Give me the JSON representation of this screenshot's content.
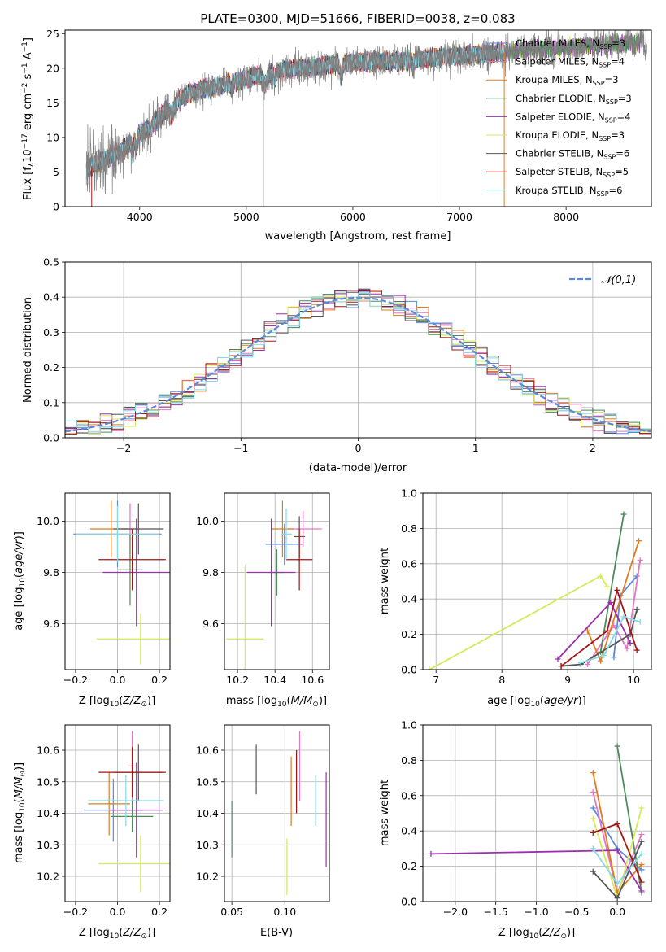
{
  "colors": {
    "Chabrier MILES": "#5b8bd8",
    "Salpeter MILES": "#e377c2",
    "Kroupa MILES": "#e07b1e",
    "Chabrier ELODIE": "#4e8a5e",
    "Salpeter ELODIE": "#9b2fae",
    "Kroupa ELODIE": "#d4ea5a",
    "Chabrier STELIB": "#555555",
    "Salpeter STELIB": "#a31515",
    "Kroupa STELIB": "#86d9e6",
    "gauss": "#5b8bd8",
    "observed": "#808080"
  },
  "chart_data": [
    {
      "id": "spectrum",
      "type": "line",
      "title": "PLATE=0300, MJD=51666, FIBERID=0038, z=0.083",
      "xlabel": "wavelength [Angstrom, rest frame]",
      "ylabel": "Flux [f_λ10^-17 erg cm^-2 s^-1 A^-1]",
      "xlim": [
        3300,
        8800
      ],
      "ylim": [
        0,
        25.5
      ],
      "xticks": [
        4000,
        5000,
        6000,
        7000,
        8000
      ],
      "yticks": [
        0,
        5,
        10,
        15,
        20,
        25
      ],
      "legend_position": "upper right",
      "legend": [
        {
          "name": "Chabrier MILES",
          "nssp": "3"
        },
        {
          "name": "Salpeter MILES",
          "nssp": "4"
        },
        {
          "name": "Kroupa MILES",
          "nssp": "3"
        },
        {
          "name": "Chabrier ELODIE",
          "nssp": "3"
        },
        {
          "name": "Salpeter ELODIE",
          "nssp": "4"
        },
        {
          "name": "Kroupa ELODIE",
          "nssp": "3"
        },
        {
          "name": "Chabrier STELIB",
          "nssp": "6"
        },
        {
          "name": "Salpeter STELIB",
          "nssp": "5"
        },
        {
          "name": "Kroupa STELIB",
          "nssp": "6"
        }
      ],
      "continuum": {
        "x": [
          3500,
          3600,
          3700,
          3800,
          3900,
          4000,
          4100,
          4200,
          4300,
          4400,
          4500,
          4600,
          4700,
          4800,
          4900,
          5000,
          5200,
          5400,
          5600,
          5800,
          6000,
          6200,
          6400,
          6600,
          6800,
          7000,
          7200,
          7400,
          7600,
          7800,
          8000,
          8200,
          8400,
          8600,
          8800
        ],
        "y": [
          5.5,
          6.2,
          7.0,
          7.8,
          9.0,
          10.5,
          11.7,
          13.2,
          14.8,
          15.8,
          16.6,
          17.0,
          17.3,
          17.6,
          18.0,
          18.6,
          19.3,
          19.8,
          20.1,
          20.5,
          20.8,
          21.0,
          21.0,
          21.2,
          21.6,
          21.8,
          22.0,
          22.3,
          22.6,
          22.8,
          23.0,
          23.2,
          23.4,
          23.6,
          23.8
        ]
      },
      "features": {
        "notes": "absorption dips at ~3930, 4300, 5175, 5890; data spikes to 0 at 5160, 6790, 7420"
      }
    },
    {
      "id": "residuals",
      "type": "step",
      "xlabel": "(data-model)/error",
      "ylabel": "Normed distribution",
      "xlim": [
        -2.5,
        2.5
      ],
      "ylim": [
        0,
        0.5
      ],
      "xticks": [
        -2,
        -1,
        0,
        1,
        2
      ],
      "yticks": [
        0.0,
        0.1,
        0.2,
        0.3,
        0.4,
        0.5
      ],
      "bin_width": 0.1,
      "legend_label": "𝒩(0,1)",
      "legend_position": "upper right"
    },
    {
      "id": "age_vs_Z",
      "type": "errorbar",
      "xlabel": "Z [log10(Z/Z⊙)]",
      "ylabel": "age [log10(age/yr)]",
      "xlim": [
        -0.25,
        0.25
      ],
      "ylim": [
        9.42,
        10.11
      ],
      "xticks": [
        -0.2,
        0.0,
        0.2
      ],
      "yticks": [
        9.6,
        9.8,
        10.0
      ],
      "points": [
        {
          "model": "Chabrier MILES",
          "x": 0.0,
          "y": 9.95,
          "xerr": 0.21,
          "yerr": 0.13
        },
        {
          "model": "Salpeter MILES",
          "x": 0.06,
          "y": 9.97,
          "xerr": 0.04,
          "yerr": 0.1
        },
        {
          "model": "Kroupa MILES",
          "x": -0.03,
          "y": 9.97,
          "xerr": 0.1,
          "yerr": 0.11
        },
        {
          "model": "Chabrier ELODIE",
          "x": 0.06,
          "y": 9.81,
          "xerr": 0.06,
          "yerr": 0.14
        },
        {
          "model": "Salpeter ELODIE",
          "x": 0.09,
          "y": 9.8,
          "xerr": 0.16,
          "yerr": 0.21
        },
        {
          "model": "Kroupa ELODIE",
          "x": 0.11,
          "y": 9.54,
          "xerr": 0.21,
          "yerr": 0.1
        },
        {
          "model": "Chabrier STELIB",
          "x": 0.1,
          "y": 9.97,
          "xerr": 0.12,
          "yerr": 0.1
        },
        {
          "model": "Salpeter STELIB",
          "x": 0.07,
          "y": 9.85,
          "xerr": 0.16,
          "yerr": 0.12
        },
        {
          "model": "Kroupa STELIB",
          "x": 0.0,
          "y": 9.95,
          "xerr": 0.2,
          "yerr": 0.11
        }
      ]
    },
    {
      "id": "age_vs_mass",
      "type": "errorbar",
      "xlabel": "mass [log10(M/M⊙)]",
      "ylabel": "",
      "xlim": [
        10.13,
        10.69
      ],
      "ylim": [
        9.42,
        10.11
      ],
      "xticks": [
        10.2,
        10.4,
        10.6
      ],
      "yticks": [
        9.6,
        9.8,
        10.0
      ],
      "points": [
        {
          "model": "Chabrier MILES",
          "x": 10.45,
          "y": 9.91,
          "xerr": 0.1,
          "yerr": 0.08
        },
        {
          "model": "Salpeter MILES",
          "x": 10.55,
          "y": 9.97,
          "xerr": 0.1,
          "yerr": 0.07
        },
        {
          "model": "Kroupa MILES",
          "x": 10.44,
          "y": 9.97,
          "xerr": 0.06,
          "yerr": 0.11
        },
        {
          "model": "Chabrier ELODIE",
          "x": 10.41,
          "y": 9.8,
          "xerr": 0.04,
          "yerr": 0.09
        },
        {
          "model": "Salpeter ELODIE",
          "x": 10.38,
          "y": 9.8,
          "xerr": 0.13,
          "yerr": 0.21
        },
        {
          "model": "Kroupa ELODIE",
          "x": 10.24,
          "y": 9.54,
          "xerr": 0.1,
          "yerr": 0.29
        },
        {
          "model": "Chabrier STELIB",
          "x": 10.53,
          "y": 9.94,
          "xerr": 0.03,
          "yerr": 0.08
        },
        {
          "model": "Salpeter STELIB",
          "x": 10.53,
          "y": 9.85,
          "xerr": 0.07,
          "yerr": 0.12
        },
        {
          "model": "Kroupa STELIB",
          "x": 10.46,
          "y": 9.95,
          "xerr": 0.03,
          "yerr": 0.1
        }
      ]
    },
    {
      "id": "weight_vs_age",
      "type": "line",
      "xlabel": "age [log10(age/yr)]",
      "ylabel": "mass weight",
      "xlim": [
        6.8,
        10.27
      ],
      "ylim": [
        0,
        1.0
      ],
      "xticks": [
        7,
        8,
        9,
        10
      ],
      "yticks": [
        0.0,
        0.2,
        0.4,
        0.6,
        0.8,
        1.0
      ],
      "series": [
        {
          "model": "Chabrier MILES",
          "x": [
            9.7,
            9.8,
            10.05
          ],
          "y": [
            0.07,
            0.42,
            0.53
          ]
        },
        {
          "model": "Salpeter MILES",
          "x": [
            9.3,
            9.7,
            9.9,
            10.1
          ],
          "y": [
            0.03,
            0.25,
            0.12,
            0.62
          ]
        },
        {
          "model": "Kroupa MILES",
          "x": [
            9.3,
            9.5,
            10.08
          ],
          "y": [
            0.22,
            0.05,
            0.73
          ]
        },
        {
          "model": "Chabrier ELODIE",
          "x": [
            9.5,
            9.85
          ],
          "y": [
            0.1,
            0.88
          ]
        },
        {
          "model": "Salpeter ELODIE",
          "x": [
            8.85,
            9.65,
            9.95
          ],
          "y": [
            0.06,
            0.38,
            0.15
          ]
        },
        {
          "model": "Kroupa ELODIE",
          "x": [
            6.9,
            9.5,
            9.6
          ],
          "y": [
            0.0,
            0.53,
            0.47
          ]
        },
        {
          "model": "Chabrier STELIB",
          "x": [
            8.9,
            9.2,
            9.95,
            10.05
          ],
          "y": [
            0.02,
            0.03,
            0.2,
            0.34
          ]
        },
        {
          "model": "Salpeter STELIB",
          "x": [
            8.9,
            9.6,
            9.75,
            10.05
          ],
          "y": [
            0.02,
            0.22,
            0.45,
            0.11
          ]
        },
        {
          "model": "Kroupa STELIB",
          "x": [
            9.2,
            9.55,
            9.85,
            10.1
          ],
          "y": [
            0.04,
            0.08,
            0.3,
            0.27
          ]
        }
      ]
    },
    {
      "id": "mass_vs_Z",
      "type": "errorbar",
      "xlabel": "Z [log10(Z/Z⊙)]",
      "ylabel": "mass [log10(M/M⊙)]",
      "xlim": [
        -0.25,
        0.25
      ],
      "ylim": [
        10.12,
        10.68
      ],
      "xticks": [
        -0.2,
        0.0,
        0.2
      ],
      "yticks": [
        10.2,
        10.3,
        10.4,
        10.5,
        10.6
      ],
      "points": [
        {
          "model": "Chabrier MILES",
          "x": -0.02,
          "y": 10.41,
          "xerr": 0.14,
          "yerr": 0.1
        },
        {
          "model": "Salpeter MILES",
          "x": 0.07,
          "y": 10.55,
          "xerr": 0.02,
          "yerr": 0.11
        },
        {
          "model": "Kroupa MILES",
          "x": -0.04,
          "y": 10.43,
          "xerr": 0.1,
          "yerr": 0.1
        },
        {
          "model": "Chabrier ELODIE",
          "x": 0.07,
          "y": 10.39,
          "xerr": 0.1,
          "yerr": 0.05
        },
        {
          "model": "Salpeter ELODIE",
          "x": 0.09,
          "y": 10.41,
          "xerr": 0.13,
          "yerr": 0.15
        },
        {
          "model": "Kroupa ELODIE",
          "x": 0.11,
          "y": 10.24,
          "xerr": 0.2,
          "yerr": 0.09
        },
        {
          "model": "Chabrier STELIB",
          "x": 0.1,
          "y": 10.53,
          "xerr": 0.12,
          "yerr": 0.09
        },
        {
          "model": "Salpeter STELIB",
          "x": 0.07,
          "y": 10.53,
          "xerr": 0.16,
          "yerr": 0.08
        },
        {
          "model": "Kroupa STELIB",
          "x": 0.04,
          "y": 10.44,
          "xerr": 0.18,
          "yerr": 0.08
        }
      ]
    },
    {
      "id": "mass_vs_ebv",
      "type": "errorbar",
      "xlabel": "E(B-V)",
      "ylabel": "",
      "xlim": [
        0.043,
        0.142
      ],
      "ylim": [
        10.12,
        10.68
      ],
      "xticks": [
        0.05,
        0.1
      ],
      "yticks": [
        10.2,
        10.3,
        10.4,
        10.5,
        10.6
      ],
      "points": [
        {
          "model": "Chabrier ELODIE",
          "x": 0.05,
          "y": 10.35,
          "xerr": 0,
          "yerr": 0.09
        },
        {
          "model": "Chabrier STELIB",
          "x": 0.073,
          "y": 10.54,
          "xerr": 0,
          "yerr": 0.08
        },
        {
          "model": "Kroupa ELODIE",
          "x": 0.102,
          "y": 10.23,
          "xerr": 0,
          "yerr": 0.09
        },
        {
          "model": "Kroupa MILES",
          "x": 0.106,
          "y": 10.47,
          "xerr": 0,
          "yerr": 0.11
        },
        {
          "model": "Salpeter STELIB",
          "x": 0.111,
          "y": 10.5,
          "xerr": 0,
          "yerr": 0.1
        },
        {
          "model": "Salpeter MILES",
          "x": 0.114,
          "y": 10.55,
          "xerr": 0,
          "yerr": 0.11
        },
        {
          "model": "Kroupa STELIB",
          "x": 0.129,
          "y": 10.44,
          "xerr": 0,
          "yerr": 0.08
        },
        {
          "model": "Salpeter ELODIE",
          "x": 0.139,
          "y": 10.38,
          "xerr": 0,
          "yerr": 0.15
        }
      ]
    },
    {
      "id": "weight_vs_Z",
      "type": "line",
      "xlabel": "Z [log10(Z/Z⊙)]",
      "ylabel": "mass weight",
      "xlim": [
        -2.4,
        0.42
      ],
      "ylim": [
        0,
        1.0
      ],
      "xticks": [
        -2.0,
        -1.5,
        -1.0,
        -0.5,
        0.0
      ],
      "yticks": [
        0.0,
        0.2,
        0.4,
        0.6,
        0.8,
        1.0
      ],
      "series": [
        {
          "model": "Chabrier MILES",
          "x": [
            -0.3,
            0.0,
            0.3
          ],
          "y": [
            0.53,
            0.3,
            0.18
          ]
        },
        {
          "model": "Salpeter MILES",
          "x": [
            -0.3,
            0.0,
            0.3
          ],
          "y": [
            0.62,
            0.05,
            0.38
          ]
        },
        {
          "model": "Kroupa MILES",
          "x": [
            -0.3,
            0.0,
            0.3
          ],
          "y": [
            0.73,
            0.05,
            0.21
          ]
        },
        {
          "model": "Chabrier ELODIE",
          "x": [
            0.0,
            0.3
          ],
          "y": [
            0.88,
            0.05
          ]
        },
        {
          "model": "Salpeter ELODIE",
          "x": [
            -2.3,
            0.0,
            0.3
          ],
          "y": [
            0.27,
            0.29,
            0.06
          ]
        },
        {
          "model": "Kroupa ELODIE",
          "x": [
            -0.3,
            0.0,
            0.3
          ],
          "y": [
            0.47,
            0.02,
            0.53
          ]
        },
        {
          "model": "Chabrier STELIB",
          "x": [
            -0.3,
            0.0,
            0.3
          ],
          "y": [
            0.17,
            0.02,
            0.34
          ]
        },
        {
          "model": "Salpeter STELIB",
          "x": [
            -0.3,
            0.0,
            0.3
          ],
          "y": [
            0.39,
            0.44,
            0.11
          ]
        },
        {
          "model": "Kroupa STELIB",
          "x": [
            -0.3,
            0.0,
            0.3
          ],
          "y": [
            0.3,
            0.1,
            0.27
          ]
        }
      ]
    }
  ]
}
